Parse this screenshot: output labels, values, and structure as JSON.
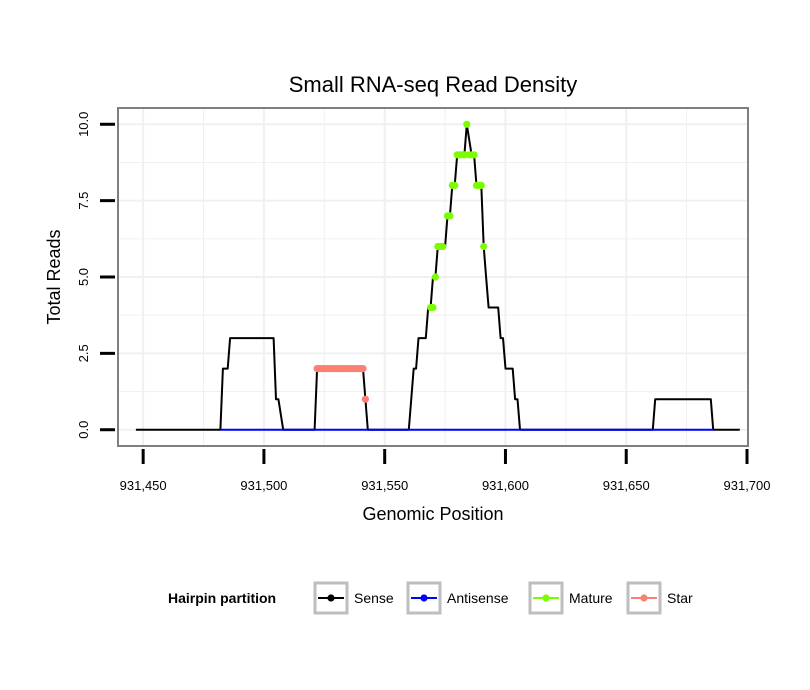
{
  "chart_data": {
    "type": "line",
    "title": "Small RNA-seq Read Density",
    "xlabel": "Genomic Position",
    "ylabel": "Total Reads",
    "xlim": [
      931440,
      931700
    ],
    "ylim": [
      -0.5,
      10.5
    ],
    "x_ticks": [
      931450,
      931500,
      931550,
      931600,
      931650,
      931700
    ],
    "x_tick_labels": [
      "931,450",
      "931,500",
      "931,550",
      "931,600",
      "931,650",
      "931,700"
    ],
    "y_ticks": [
      0,
      2.5,
      5,
      7.5,
      10
    ],
    "y_tick_labels": [
      "0.0",
      "2.5",
      "5.0",
      "7.5",
      "10.0"
    ],
    "grid": true,
    "legend_position": "bottom",
    "legend_title": "Hairpin partition",
    "series": [
      {
        "name": "Sense",
        "color": "#000000",
        "mode": "line",
        "points": [
          [
            931447,
            0
          ],
          [
            931482,
            0
          ],
          [
            931483,
            2
          ],
          [
            931485,
            2
          ],
          [
            931486,
            3
          ],
          [
            931504,
            3
          ],
          [
            931505,
            1
          ],
          [
            931506,
            1
          ],
          [
            931508,
            0
          ],
          [
            931521,
            0
          ],
          [
            931522,
            2
          ],
          [
            931541,
            2
          ],
          [
            931542,
            1
          ],
          [
            931543,
            0
          ],
          [
            931560,
            0
          ],
          [
            931562,
            2
          ],
          [
            931563,
            2
          ],
          [
            931564,
            3
          ],
          [
            931567,
            3
          ],
          [
            931568,
            4
          ],
          [
            931569,
            4
          ],
          [
            931570,
            5
          ],
          [
            931571,
            5
          ],
          [
            931572,
            6
          ],
          [
            931575,
            6
          ],
          [
            931576,
            7
          ],
          [
            931577,
            7
          ],
          [
            931578,
            8
          ],
          [
            931579,
            8
          ],
          [
            931580,
            9
          ],
          [
            931583,
            9
          ],
          [
            931584,
            10
          ],
          [
            931586,
            9
          ],
          [
            931587,
            9
          ],
          [
            931588,
            8
          ],
          [
            931590,
            8
          ],
          [
            931591,
            6
          ],
          [
            931592,
            5
          ],
          [
            931593,
            4
          ],
          [
            931597,
            4
          ],
          [
            931598,
            3
          ],
          [
            931599,
            3
          ],
          [
            931600,
            2
          ],
          [
            931603,
            2
          ],
          [
            931604,
            1
          ],
          [
            931605,
            1
          ],
          [
            931606,
            0
          ],
          [
            931661,
            0
          ],
          [
            931662,
            1
          ],
          [
            931685,
            1
          ],
          [
            931686,
            0
          ],
          [
            931697,
            0
          ]
        ]
      },
      {
        "name": "Antisense",
        "color": "#0000ff",
        "mode": "line",
        "points": [
          [
            931482,
            0
          ],
          [
            931606,
            0
          ],
          [
            931661,
            0
          ],
          [
            931686,
            0
          ]
        ]
      },
      {
        "name": "Mature",
        "color": "#7cfc00",
        "mode": "points",
        "points": [
          [
            931569,
            4
          ],
          [
            931570,
            4
          ],
          [
            931571,
            5
          ],
          [
            931572,
            6
          ],
          [
            931573,
            6
          ],
          [
            931574,
            6
          ],
          [
            931576,
            7
          ],
          [
            931577,
            7
          ],
          [
            931578,
            8
          ],
          [
            931579,
            8
          ],
          [
            931580,
            9
          ],
          [
            931581,
            9
          ],
          [
            931582,
            9
          ],
          [
            931583,
            9
          ],
          [
            931584,
            10
          ],
          [
            931585,
            9
          ],
          [
            931586,
            9
          ],
          [
            931587,
            9
          ],
          [
            931588,
            8
          ],
          [
            931589,
            8
          ],
          [
            931590,
            8
          ],
          [
            931591,
            6
          ]
        ]
      },
      {
        "name": "Star",
        "color": "#fa8072",
        "mode": "points",
        "points": [
          [
            931522,
            2
          ],
          [
            931523,
            2
          ],
          [
            931524,
            2
          ],
          [
            931525,
            2
          ],
          [
            931526,
            2
          ],
          [
            931527,
            2
          ],
          [
            931528,
            2
          ],
          [
            931529,
            2
          ],
          [
            931530,
            2
          ],
          [
            931531,
            2
          ],
          [
            931532,
            2
          ],
          [
            931533,
            2
          ],
          [
            931534,
            2
          ],
          [
            931535,
            2
          ],
          [
            931536,
            2
          ],
          [
            931537,
            2
          ],
          [
            931538,
            2
          ],
          [
            931539,
            2
          ],
          [
            931540,
            2
          ],
          [
            931541,
            2
          ],
          [
            931542,
            1
          ]
        ]
      }
    ]
  }
}
